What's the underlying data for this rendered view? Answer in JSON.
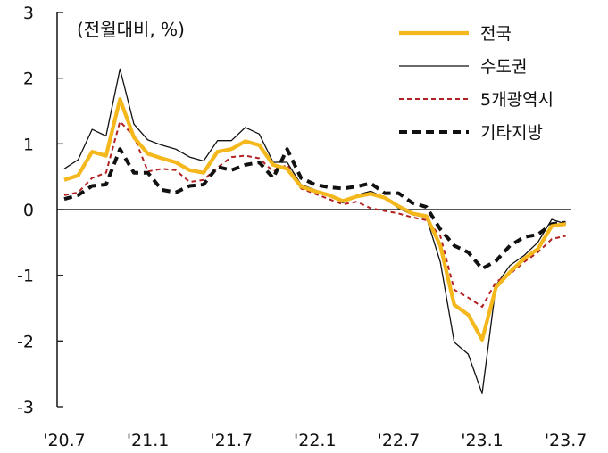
{
  "chart_data": {
    "type": "line",
    "unit_label": "(전월대비, %)",
    "x_tick_labels": [
      "'20.7",
      "'21.1",
      "'21.7",
      "'22.1",
      "'22.7",
      "'23.1",
      "'23.7"
    ],
    "y_tick_labels": [
      "3",
      "2",
      "1",
      "0",
      "-1",
      "-2",
      "-3"
    ],
    "y_ticks": [
      3,
      2,
      1,
      0,
      -1,
      -2,
      -3
    ],
    "ylim": [
      -3,
      3
    ],
    "x": [
      "2020-07",
      "2020-08",
      "2020-09",
      "2020-10",
      "2020-11",
      "2020-12",
      "2021-01",
      "2021-02",
      "2021-03",
      "2021-04",
      "2021-05",
      "2021-06",
      "2021-07",
      "2021-08",
      "2021-09",
      "2021-10",
      "2021-11",
      "2021-12",
      "2022-01",
      "2022-02",
      "2022-03",
      "2022-04",
      "2022-05",
      "2022-06",
      "2022-07",
      "2022-08",
      "2022-09",
      "2022-10",
      "2022-11",
      "2022-12",
      "2023-01",
      "2023-02",
      "2023-03",
      "2023-04",
      "2023-05",
      "2023-06",
      "2023-07"
    ],
    "series": [
      {
        "name": "전국",
        "color": "#F5B81C",
        "style": "solid-thick",
        "values": [
          0.45,
          0.52,
          0.88,
          0.82,
          1.68,
          1.1,
          0.85,
          0.78,
          0.72,
          0.6,
          0.56,
          0.88,
          0.92,
          1.04,
          0.98,
          0.68,
          0.62,
          0.35,
          0.28,
          0.22,
          0.13,
          0.2,
          0.24,
          0.18,
          0.05,
          -0.06,
          -0.1,
          -0.55,
          -1.45,
          -1.6,
          -1.98,
          -1.18,
          -0.95,
          -0.75,
          -0.6,
          -0.25,
          -0.22
        ]
      },
      {
        "name": "수도권",
        "color": "#111111",
        "style": "solid-thin",
        "values": [
          0.62,
          0.76,
          1.22,
          1.12,
          2.14,
          1.3,
          1.06,
          0.98,
          0.92,
          0.8,
          0.74,
          1.05,
          1.05,
          1.25,
          1.15,
          0.72,
          0.72,
          0.38,
          0.3,
          0.22,
          0.1,
          0.22,
          0.28,
          0.18,
          0.02,
          -0.08,
          -0.12,
          -0.8,
          -2.02,
          -2.2,
          -2.8,
          -1.15,
          -0.85,
          -0.7,
          -0.5,
          -0.15,
          -0.22
        ]
      },
      {
        "name": "5개광역시",
        "color": "#B22222",
        "style": "dashed-thin",
        "values": [
          0.22,
          0.26,
          0.48,
          0.56,
          1.34,
          1.12,
          0.58,
          0.62,
          0.6,
          0.42,
          0.45,
          0.64,
          0.8,
          0.82,
          0.78,
          0.58,
          0.68,
          0.32,
          0.24,
          0.16,
          0.08,
          0.12,
          0.02,
          -0.02,
          -0.06,
          -0.12,
          -0.16,
          -0.4,
          -1.22,
          -1.34,
          -1.48,
          -1.1,
          -0.98,
          -0.8,
          -0.65,
          -0.45,
          -0.4
        ]
      },
      {
        "name": "기타지방",
        "color": "#111111",
        "style": "dashed-thick",
        "values": [
          0.16,
          0.22,
          0.36,
          0.38,
          0.92,
          0.56,
          0.56,
          0.3,
          0.26,
          0.36,
          0.38,
          0.65,
          0.6,
          0.68,
          0.72,
          0.48,
          0.92,
          0.48,
          0.38,
          0.34,
          0.32,
          0.35,
          0.4,
          0.25,
          0.25,
          0.1,
          0.04,
          -0.3,
          -0.55,
          -0.65,
          -0.9,
          -0.78,
          -0.55,
          -0.42,
          -0.38,
          -0.22,
          -0.2
        ]
      }
    ]
  }
}
